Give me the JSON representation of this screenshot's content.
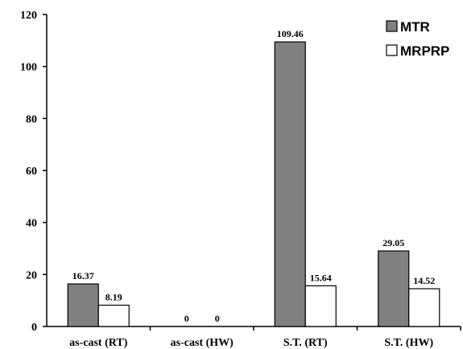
{
  "chart_data": {
    "type": "bar",
    "categories": [
      "as-cast (RT)",
      "as-cast (HW)",
      "S.T. (RT)",
      "S.T. (HW)"
    ],
    "series": [
      {
        "name": "MTR",
        "values": [
          16.37,
          0,
          109.46,
          29.05
        ],
        "color": "#808080"
      },
      {
        "name": "MRPRP",
        "values": [
          8.19,
          0,
          15.64,
          14.52
        ],
        "color": "#ffffff"
      }
    ],
    "data_labels": [
      [
        "16.37",
        "0",
        "109.46",
        "29.05"
      ],
      [
        "8.19",
        "0",
        "15.64",
        "14.52"
      ]
    ],
    "title": "",
    "xlabel": "",
    "ylabel": "",
    "ylim": [
      0,
      120
    ],
    "yticks": [
      "0",
      "20",
      "40",
      "60",
      "80",
      "100",
      "120"
    ],
    "grid": false,
    "legend_position": "top-right"
  }
}
